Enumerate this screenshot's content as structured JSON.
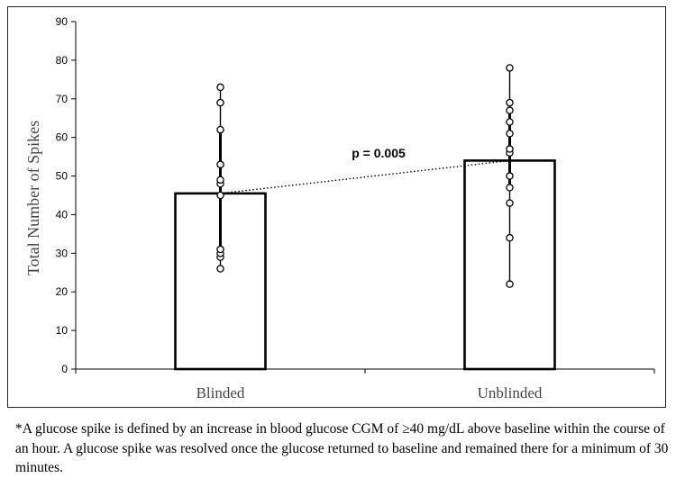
{
  "chart_data": {
    "type": "bar",
    "categories": [
      "Blinded",
      "Unblinded"
    ],
    "values": [
      45.5,
      54
    ],
    "points": [
      [
        26,
        29,
        30,
        31,
        45,
        48,
        49,
        53,
        62,
        69,
        73
      ],
      [
        22,
        34,
        43,
        47,
        50,
        56,
        57,
        61,
        64,
        67,
        69,
        78
      ]
    ],
    "title": "",
    "xlabel": "",
    "ylabel": "Total Number of Spikes",
    "ylim": [
      0,
      90
    ],
    "yticks": [
      0,
      10,
      20,
      30,
      40,
      50,
      60,
      70,
      80,
      90
    ],
    "grid": false,
    "legend": "none",
    "annotation": "p = 0.005"
  },
  "footnote": "*A glucose spike is defined by an increase in blood glucose CGM of ≥40 mg/dL above baseline within the course of an hour. A glucose spike was resolved once the glucose returned to baseline and remained there for a minimum of 30 minutes.",
  "colors": {
    "bar_fill": "#ffffff",
    "stroke": "#000000",
    "point_fill": "#ffffff"
  }
}
